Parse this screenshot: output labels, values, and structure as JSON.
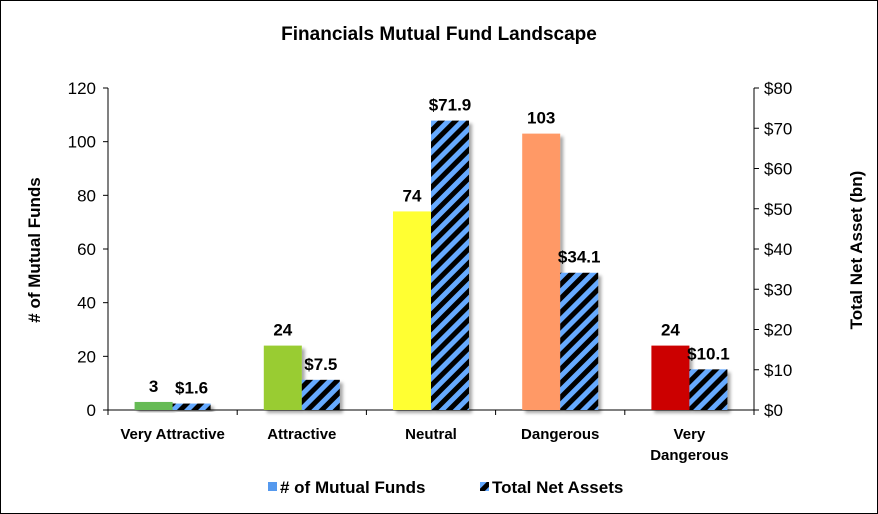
{
  "chart_data": {
    "type": "bar",
    "title": "Financials Mutual Fund Landscape",
    "categories": [
      "Very Attractive",
      "Attractive",
      "Neutral",
      "Dangerous",
      "Very Dangerous"
    ],
    "category_labels": [
      [
        "Very Attractive"
      ],
      [
        "Attractive"
      ],
      [
        "Neutral"
      ],
      [
        "Dangerous"
      ],
      [
        "Very",
        "Dangerous"
      ]
    ],
    "ylabel_left": "# of Mutual Funds",
    "ylabel_right": "Total Net Asset (bn)",
    "ylim_left": [
      0,
      120
    ],
    "ylim_right": [
      0,
      80
    ],
    "yticks_left": [
      "0",
      "20",
      "40",
      "60",
      "80",
      "100",
      "120"
    ],
    "yticks_right": [
      "$0",
      "$10",
      "$20",
      "$30",
      "$40",
      "$50",
      "$60",
      "$70",
      "$80"
    ],
    "grid": false,
    "legend_position": "bottom",
    "series": [
      {
        "name": "# of Mutual Funds",
        "axis": "left",
        "values": [
          3,
          24,
          74,
          103,
          24
        ],
        "labels": [
          "3",
          "24",
          "74",
          "103",
          "24"
        ],
        "colors": [
          "#66bb55",
          "#99cc33",
          "#ffff33",
          "#ff9966",
          "#cc0000"
        ],
        "legend_color": "#5599ee"
      },
      {
        "name": "Total Net Assets",
        "axis": "right",
        "values": [
          1.6,
          7.5,
          71.9,
          34.1,
          10.1
        ],
        "labels": [
          "$1.6",
          "$7.5",
          "$71.9",
          "$34.1",
          "$10.1"
        ],
        "pattern": "diagonal-stripes",
        "colors": [
          "#000000",
          "#66aaff"
        ]
      }
    ]
  }
}
